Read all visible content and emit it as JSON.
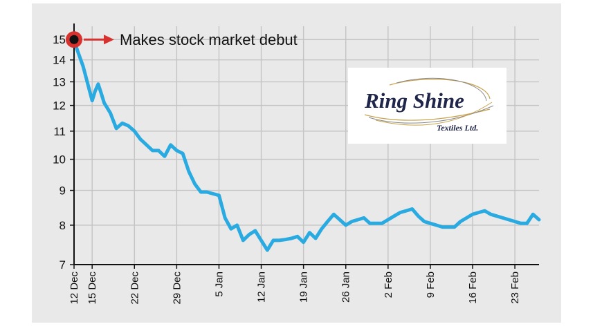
{
  "chart_data": {
    "type": "line",
    "title": "",
    "xlabel": "",
    "ylabel": "",
    "scale": "log",
    "ylim": [
      7,
      15.4
    ],
    "y_ticks": [
      7,
      8,
      9,
      10,
      11,
      12,
      13,
      14,
      15
    ],
    "x_tick_labels": [
      "12 Dec",
      "15 Dec",
      "22 Dec",
      "29 Dec",
      "5 Jan",
      "12 Jan",
      "19 Jan",
      "26 Jan",
      "2 Feb",
      "9 Feb",
      "16 Feb",
      "23 Feb"
    ],
    "x_tick_days": [
      0,
      3,
      10,
      17,
      24,
      31,
      38,
      45,
      52,
      59,
      66,
      73
    ],
    "xlim_days": [
      0,
      77
    ],
    "grid": true,
    "line_color": "#29abe2",
    "annotation": {
      "text": "Makes stock market debut",
      "x_day": 0,
      "y": 15
    },
    "series": [
      {
        "x_days": [
          0,
          0.5,
          1.5,
          3,
          3.5,
          4,
          4.5,
          5,
          5.5,
          6,
          7,
          8,
          9,
          10,
          11,
          12,
          13,
          14,
          15,
          16,
          17,
          18,
          19,
          20,
          21,
          22,
          23,
          24,
          25,
          26,
          27,
          28,
          29,
          30,
          31,
          32,
          33,
          34,
          35,
          36,
          37,
          38,
          39,
          40,
          41,
          42,
          43,
          44,
          45,
          46,
          47,
          48,
          49,
          50,
          51,
          52,
          53,
          54,
          55,
          56,
          57,
          58,
          59,
          60,
          61,
          62,
          63,
          64,
          65,
          66,
          67,
          68,
          69,
          70,
          71,
          72,
          73,
          74,
          75,
          76,
          77
        ],
        "values": [
          15.0,
          14.5,
          13.7,
          12.2,
          12.6,
          12.9,
          12.5,
          12.1,
          11.9,
          11.7,
          11.1,
          11.3,
          11.2,
          11.0,
          10.7,
          10.5,
          10.3,
          10.3,
          10.1,
          10.5,
          10.3,
          10.2,
          9.6,
          9.2,
          8.95,
          8.95,
          8.9,
          8.85,
          8.2,
          7.9,
          8.0,
          7.6,
          7.75,
          7.85,
          7.6,
          7.35,
          7.6,
          7.6,
          7.62,
          7.65,
          7.7,
          7.55,
          7.8,
          7.65,
          7.9,
          8.1,
          8.3,
          8.15,
          8.0,
          8.1,
          8.15,
          8.2,
          8.05,
          8.05,
          8.05,
          8.15,
          8.25,
          8.35,
          8.4,
          8.45,
          8.25,
          8.1,
          8.05,
          8.0,
          7.95,
          7.95,
          7.95,
          8.1,
          8.2,
          8.3,
          8.35,
          8.4,
          8.3,
          8.25,
          8.2,
          8.15,
          8.1,
          8.05,
          8.05,
          8.3,
          8.15
        ]
      }
    ]
  },
  "logo": {
    "name": "Ring Shine",
    "subtitle": "Textiles Ltd."
  }
}
